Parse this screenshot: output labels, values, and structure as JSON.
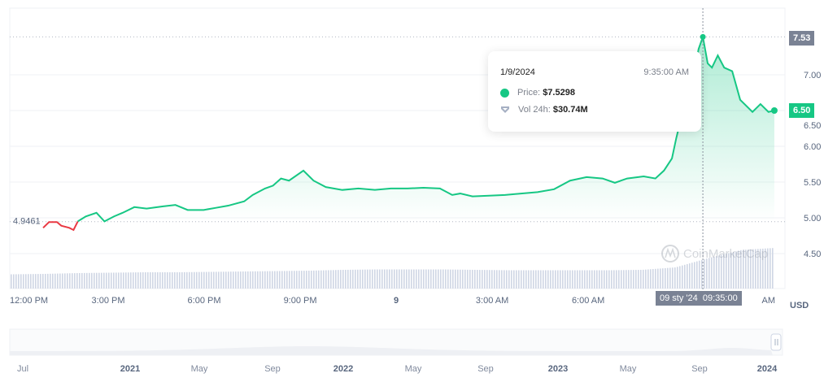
{
  "chart_data": {
    "type": "line",
    "currency": "USD",
    "y_ticks": [
      "4.50",
      "5.00",
      "5.50",
      "6.00",
      "6.50",
      "7.00"
    ],
    "ylim": [
      4.2,
      7.8
    ],
    "x_ticks": [
      {
        "t": "2024-01-08T12:00",
        "label": "12:00 PM"
      },
      {
        "t": "2024-01-08T15:00",
        "label": "3:00 PM"
      },
      {
        "t": "2024-01-08T18:00",
        "label": "6:00 PM"
      },
      {
        "t": "2024-01-08T21:00",
        "label": "9:00 PM"
      },
      {
        "t": "2024-01-09T00:00",
        "label": "9"
      },
      {
        "t": "2024-01-09T03:00",
        "label": "3:00 AM"
      },
      {
        "t": "2024-01-09T06:00",
        "label": "6:00 AM"
      },
      {
        "t": "2024-01-09T11:00",
        "label": "AM"
      }
    ],
    "baseline": {
      "value": 4.9461,
      "label": "4.9461"
    },
    "high_label": "7.53",
    "last_label": "6.50",
    "series": [
      {
        "values": [
          [
            "2024-01-08T12:58",
            4.86
          ],
          [
            "2024-01-08T13:09",
            4.94
          ],
          [
            "2024-01-08T13:24",
            4.94
          ],
          [
            "2024-01-08T13:32",
            4.89
          ],
          [
            "2024-01-08T13:47",
            4.86
          ],
          [
            "2024-01-08T13:55",
            4.83
          ],
          [
            "2024-01-08T14:03",
            4.95
          ],
          [
            "2024-01-08T14:18",
            5.02
          ],
          [
            "2024-01-08T14:38",
            5.07
          ],
          [
            "2024-01-08T14:53",
            4.95
          ],
          [
            "2024-01-08T15:11",
            5.02
          ],
          [
            "2024-01-08T15:27",
            5.07
          ],
          [
            "2024-01-08T15:49",
            5.15
          ],
          [
            "2024-01-08T16:12",
            5.13
          ],
          [
            "2024-01-08T16:43",
            5.16
          ],
          [
            "2024-01-08T17:06",
            5.18
          ],
          [
            "2024-01-08T17:29",
            5.11
          ],
          [
            "2024-01-08T17:59",
            5.11
          ],
          [
            "2024-01-08T18:22",
            5.14
          ],
          [
            "2024-01-08T18:45",
            5.17
          ],
          [
            "2024-01-08T19:15",
            5.23
          ],
          [
            "2024-01-08T19:31",
            5.32
          ],
          [
            "2024-01-08T19:54",
            5.41
          ],
          [
            "2024-01-08T20:09",
            5.45
          ],
          [
            "2024-01-08T20:24",
            5.55
          ],
          [
            "2024-01-08T20:39",
            5.52
          ],
          [
            "2024-01-08T21:06",
            5.66
          ],
          [
            "2024-01-08T21:25",
            5.52
          ],
          [
            "2024-01-08T21:48",
            5.43
          ],
          [
            "2024-01-08T22:19",
            5.39
          ],
          [
            "2024-01-08T22:49",
            5.41
          ],
          [
            "2024-01-08T23:20",
            5.39
          ],
          [
            "2024-01-08T23:50",
            5.41
          ],
          [
            "2024-01-09T00:21",
            5.41
          ],
          [
            "2024-01-09T00:51",
            5.42
          ],
          [
            "2024-01-09T01:22",
            5.41
          ],
          [
            "2024-01-09T01:45",
            5.32
          ],
          [
            "2024-01-09T02:00",
            5.34
          ],
          [
            "2024-01-09T02:23",
            5.3
          ],
          [
            "2024-01-09T02:54",
            5.31
          ],
          [
            "2024-01-09T03:24",
            5.32
          ],
          [
            "2024-01-09T03:54",
            5.34
          ],
          [
            "2024-01-09T04:25",
            5.36
          ],
          [
            "2024-01-09T04:56",
            5.4
          ],
          [
            "2024-01-09T05:26",
            5.52
          ],
          [
            "2024-01-09T05:57",
            5.57
          ],
          [
            "2024-01-09T06:27",
            5.55
          ],
          [
            "2024-01-09T06:50",
            5.49
          ],
          [
            "2024-01-09T07:13",
            5.55
          ],
          [
            "2024-01-09T07:44",
            5.58
          ],
          [
            "2024-01-09T08:06",
            5.55
          ],
          [
            "2024-01-09T08:22",
            5.66
          ],
          [
            "2024-01-09T08:37",
            5.83
          ],
          [
            "2024-01-09T08:45",
            6.11
          ],
          [
            "2024-01-09T09:00",
            6.57
          ],
          [
            "2024-01-09T09:15",
            6.91
          ],
          [
            "2024-01-09T09:27",
            7.36
          ],
          [
            "2024-01-09T09:35",
            7.53
          ],
          [
            "2024-01-09T09:44",
            7.16
          ],
          [
            "2024-01-09T09:52",
            7.1
          ],
          [
            "2024-01-09T10:03",
            7.27
          ],
          [
            "2024-01-09T10:15",
            7.1
          ],
          [
            "2024-01-09T10:30",
            7.05
          ],
          [
            "2024-01-09T10:45",
            6.65
          ],
          [
            "2024-01-09T11:08",
            6.48
          ],
          [
            "2024-01-09T11:23",
            6.59
          ],
          [
            "2024-01-09T11:38",
            6.48
          ],
          [
            "2024-01-09T11:49",
            6.5
          ]
        ]
      }
    ],
    "volume_relative": [
      0.35,
      0.36,
      0.38,
      0.39,
      0.4,
      0.4,
      0.41,
      0.42,
      0.43,
      0.44,
      0.46,
      0.47,
      0.47,
      0.47,
      0.46,
      0.45,
      0.45,
      0.45,
      0.45,
      0.46,
      0.52,
      0.75,
      0.95,
      1.0
    ],
    "colors": {
      "up": "#16c784",
      "down": "#ea3943",
      "volume": "#cfd6e4",
      "tag_gray": "#7a8294"
    },
    "navigator_labels": [
      {
        "label": "Jul",
        "bold": false
      },
      {
        "label": "2021",
        "bold": true
      },
      {
        "label": "May",
        "bold": false
      },
      {
        "label": "Sep",
        "bold": false
      },
      {
        "label": "2022",
        "bold": true
      },
      {
        "label": "May",
        "bold": false
      },
      {
        "label": "Sep",
        "bold": false
      },
      {
        "label": "2023",
        "bold": true
      },
      {
        "label": "May",
        "bold": false
      },
      {
        "label": "Sep",
        "bold": false
      },
      {
        "label": "2024",
        "bold": true
      }
    ]
  },
  "tooltip": {
    "date": "1/9/2024",
    "time": "9:35:00 AM",
    "price_label": "Price:",
    "price_value": "$7.5298",
    "vol_label": "Vol 24h:",
    "vol_value": "$30.74M"
  },
  "crosshair": {
    "date": "09 sty '24",
    "time": "09:35:00"
  },
  "watermark": "CoinMarketCap",
  "currency_label": "USD"
}
